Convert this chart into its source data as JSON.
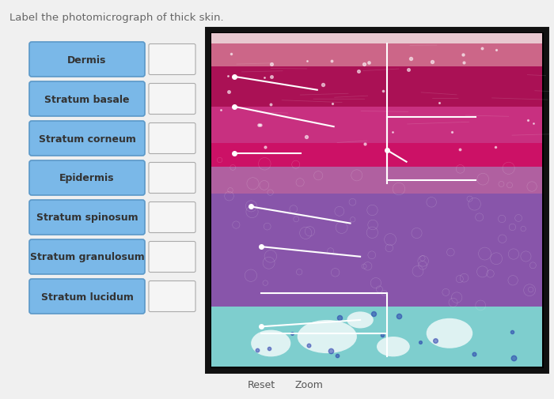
{
  "title": "Label the photomicrograph of thick skin.",
  "title_color": "#666666",
  "title_fontsize": 9.5,
  "background_color": "#f0f0f0",
  "button_color": "#7ab8e8",
  "button_edge_color": "#5a98c8",
  "button_text_color": "#333333",
  "button_fontsize": 9,
  "button_fontweight": "bold",
  "buttons": [
    "Dermis",
    "Stratum basale",
    "Stratum corneum",
    "Epidermis",
    "Stratum spinosum",
    "Stratum granulosum",
    "Stratum lucidum"
  ],
  "reset_text": "Reset",
  "zoom_text": "Zoom",
  "footer_fontsize": 9,
  "footer_color": "#555555"
}
